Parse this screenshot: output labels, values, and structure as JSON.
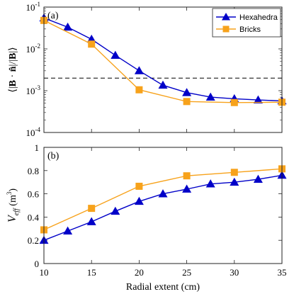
{
  "chart_data": [
    {
      "type": "line",
      "panel_label": "(a)",
      "xlabel": "",
      "ylabel_parts": [
        "⟨|",
        "B",
        " · ",
        "n̂",
        "|/|",
        "B",
        "|⟩"
      ],
      "yscale": "log",
      "ylim": [
        0.0001,
        0.1
      ],
      "xlim": [
        10,
        35
      ],
      "xticks": [
        10,
        15,
        20,
        25,
        30,
        35
      ],
      "yticks": [
        {
          "value": 0.0001,
          "base": "10",
          "exp": "-4"
        },
        {
          "value": 0.001,
          "base": "10",
          "exp": "-3"
        },
        {
          "value": 0.01,
          "base": "10",
          "exp": "-2"
        },
        {
          "value": 0.1,
          "base": "10",
          "exp": "-1"
        }
      ],
      "reference_line": {
        "y": 0.002,
        "style": "dashed"
      },
      "legend": {
        "position": "top-right"
      },
      "series": [
        {
          "name": "Hexahedra",
          "marker": "triangle",
          "color": "#0000c8",
          "x": [
            10,
            12.5,
            15,
            17.5,
            20,
            22.5,
            25,
            27.5,
            30,
            32.5,
            35
          ],
          "values": [
            0.055,
            0.033,
            0.017,
            0.007,
            0.003,
            0.00135,
            0.0009,
            0.0007,
            0.00064,
            0.0006,
            0.00057
          ]
        },
        {
          "name": "Bricks",
          "marker": "square",
          "color": "#f7a21b",
          "x": [
            10,
            15,
            20,
            25,
            30,
            35
          ],
          "values": [
            0.048,
            0.013,
            0.00105,
            0.00055,
            0.00052,
            0.00053
          ]
        }
      ]
    },
    {
      "type": "line",
      "panel_label": "(b)",
      "xlabel": "Radial extent (cm)",
      "ylabel_parts": [
        "V",
        "eff",
        " (m",
        "3",
        ")"
      ],
      "yscale": "linear",
      "ylim": [
        0,
        1
      ],
      "xlim": [
        10,
        35
      ],
      "xticks": [
        10,
        15,
        20,
        25,
        30,
        35
      ],
      "yticks": [
        0,
        0.2,
        0.4,
        0.6,
        0.8,
        1
      ],
      "series": [
        {
          "name": "Hexahedra",
          "marker": "triangle",
          "color": "#0000c8",
          "x": [
            10,
            12.5,
            15,
            17.5,
            20,
            22.5,
            25,
            27.5,
            30,
            32.5,
            35
          ],
          "values": [
            0.2,
            0.28,
            0.36,
            0.45,
            0.535,
            0.6,
            0.64,
            0.685,
            0.7,
            0.725,
            0.76
          ]
        },
        {
          "name": "Bricks",
          "marker": "square",
          "color": "#f7a21b",
          "x": [
            10,
            15,
            20,
            25,
            30,
            35
          ],
          "values": [
            0.29,
            0.475,
            0.665,
            0.755,
            0.785,
            0.815
          ]
        }
      ]
    }
  ]
}
